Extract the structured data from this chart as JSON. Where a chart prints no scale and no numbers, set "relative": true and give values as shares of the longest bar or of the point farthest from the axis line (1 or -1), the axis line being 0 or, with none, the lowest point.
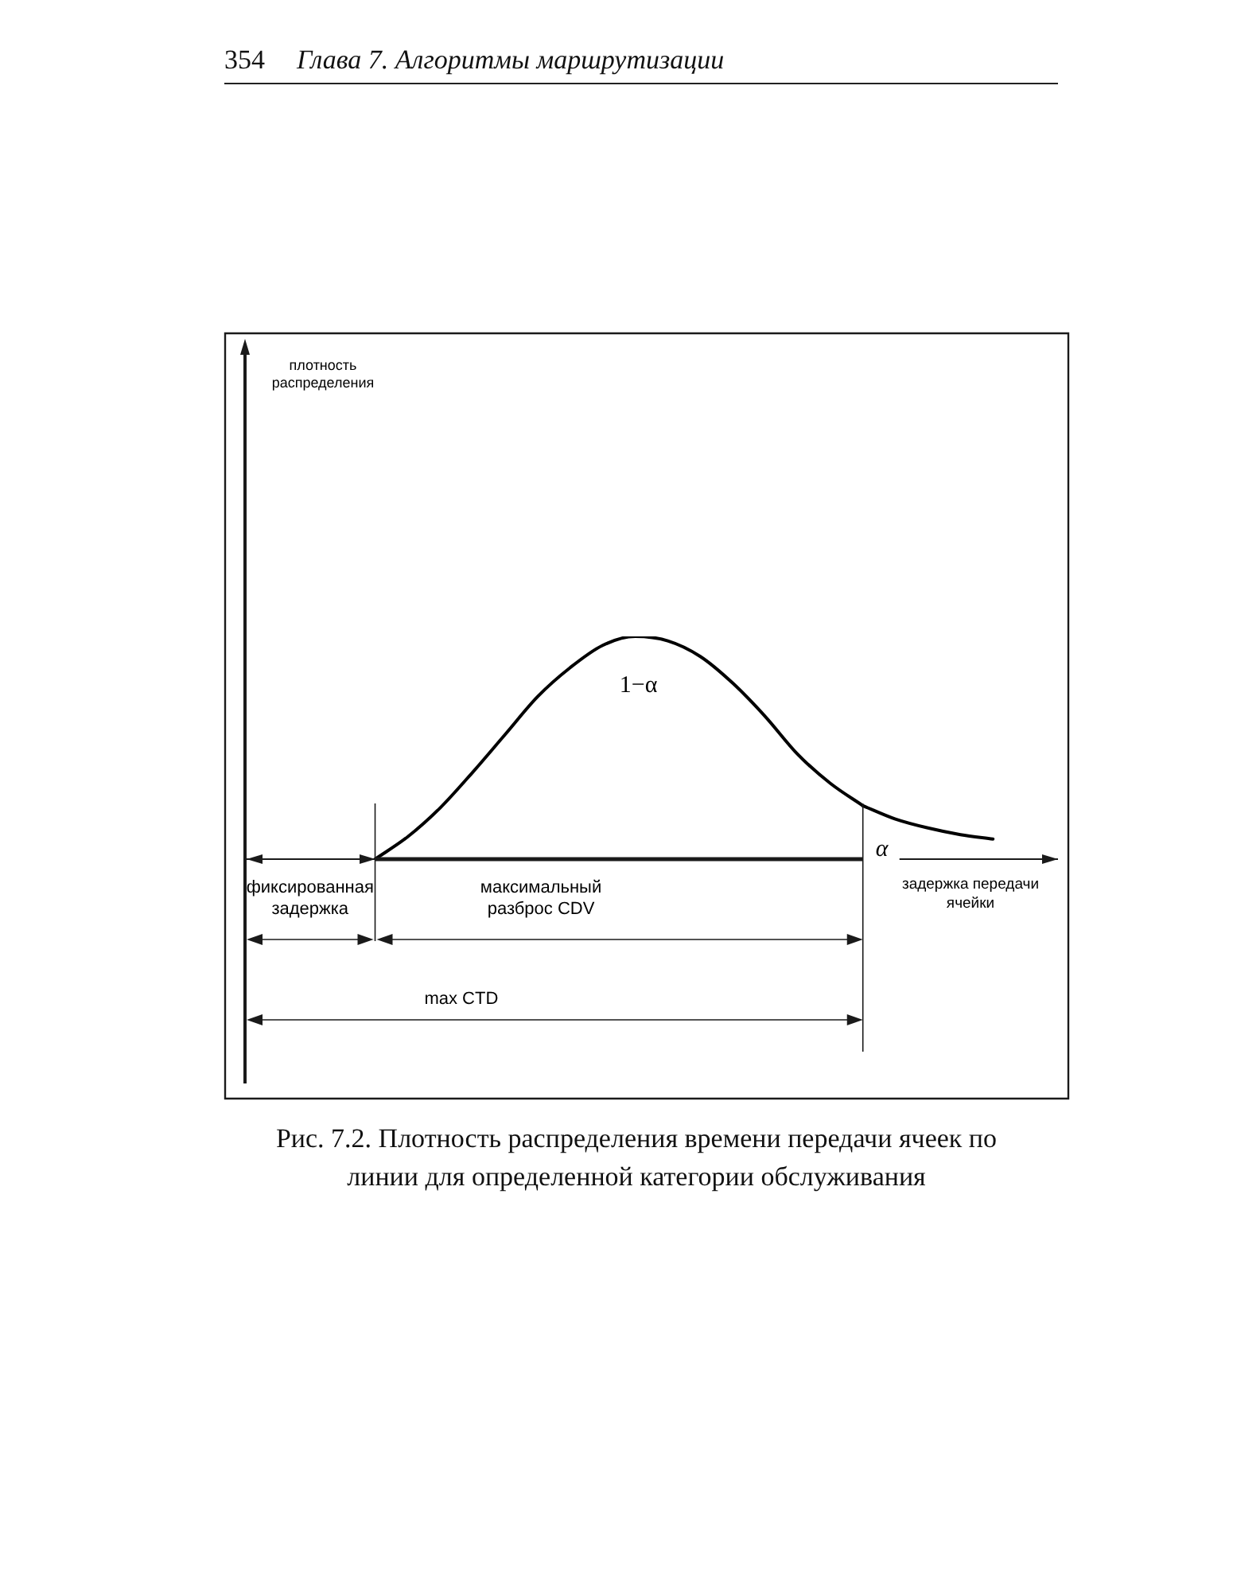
{
  "chart_data": {
    "type": "line",
    "title": "Рис. 7.2. Плотность распределения времени передачи ячеек по линии для определенной категории обслуживания",
    "xlabel": "задержка передачи ячейки",
    "annotations": [
      "354 Глава 7. Алгоритмы маршрутизации",
      "плотность распределения",
      "фиксированная задержка",
      "максимальный разброс CDV",
      "max CTD"
    ],
    "categories": [
      null,
      null,
      null,
      null,
      null,
      null,
      null,
      null,
      null,
      null,
      null,
      null,
      null,
      null,
      null,
      null,
      null,
      null,
      null,
      null,
      null,
      null,
      null,
      null,
      null,
      null
    ],
    "series": [
      {
        "name": "1−α",
        "color": "#000000",
        "values": [
          null,
          null,
          null,
          null,
          0,
          0.1,
          0.23,
          0.39,
          0.56,
          0.73,
          0.86,
          0.96,
          1.0,
          0.98,
          0.91,
          0.79,
          0.64,
          0.47,
          0.34,
          0.24,
          null,
          null,
          null,
          null,
          null,
          null
        ]
      },
      {
        "name": "α",
        "color": "#000000",
        "values": [
          null,
          null,
          null,
          null,
          null,
          null,
          null,
          null,
          null,
          null,
          null,
          null,
          null,
          null,
          null,
          null,
          null,
          null,
          null,
          0.24,
          0.18,
          0.14,
          0.11,
          0.09,
          null,
          null
        ]
      }
    ],
    "relative": true,
    "marker": "none",
    "line_style": "solid"
  }
}
